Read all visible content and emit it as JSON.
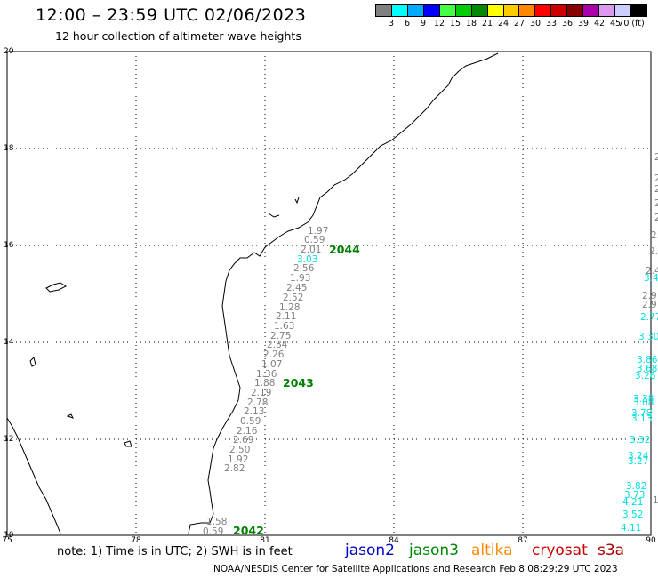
{
  "header": {
    "title": "12:00 – 23:59 UTC 02/06/2023",
    "subtitle": "12 hour collection of altimeter wave heights"
  },
  "colorbar": {
    "colors": [
      "#808080",
      "#00ffff",
      "#00aaff",
      "#0000ff",
      "#44ff44",
      "#00cc00",
      "#008800",
      "#ffff00",
      "#ffcc00",
      "#ff8800",
      "#ff0000",
      "#cc0000",
      "#880000",
      "#aa00aa",
      "#dd99ee",
      "#ccccff",
      "#000000"
    ],
    "labels": [
      "3",
      "6",
      "9",
      "12",
      "15",
      "18",
      "21",
      "24",
      "27",
      "30",
      "33",
      "36",
      "39",
      "42",
      "45",
      "70 (ft)"
    ]
  },
  "axes": {
    "lon_labels": [
      "75",
      "78",
      "81",
      "84",
      "87",
      "90"
    ],
    "lat_labels": [
      "20",
      "18",
      "16",
      "14",
      "12",
      "10"
    ]
  },
  "track_jason3": {
    "cycle_labels": [
      "2044",
      "2043",
      "2042"
    ],
    "values": [
      "1.97",
      "0.59",
      "2.01",
      "3.03",
      "2.56",
      "1.93",
      "2.45",
      "2.52",
      "1.28",
      "2.11",
      "1.63",
      "2.75",
      "2.84",
      "2.26",
      "1.07",
      "1.36",
      "1.88",
      "2.19",
      "2.78",
      "2.13",
      "0.59",
      "2.16",
      "2.69",
      "2.50",
      "1.92",
      "2.82",
      "1.58",
      "0.59"
    ]
  },
  "track_right": {
    "values": [
      "2.",
      "2",
      "2",
      "2.",
      "2.",
      "2.",
      "2.",
      "2.4",
      "3.4",
      "2.9",
      "2.9",
      "2.77",
      "3.30",
      "3.86",
      "3.68",
      "3.26",
      "3.38",
      "3.08",
      "3.78",
      "3.13",
      "3.32",
      "3.24",
      "3.27",
      "3.82",
      "3.73",
      "4.21",
      "3.52",
      "4.11",
      "1"
    ]
  },
  "footer": {
    "note": "note:  1) Time is in UTC;  2) SWH is in feet",
    "satellites": [
      {
        "name": "jason2",
        "color": "#0000cc"
      },
      {
        "name": "jason3",
        "color": "#008800"
      },
      {
        "name": "altika",
        "color": "#ff8800"
      },
      {
        "name": "cryosat",
        "color": "#cc0000"
      },
      {
        "name": "s3a",
        "color": "#aa0000"
      }
    ],
    "credit": "NOAA/NESDIS Center for Satellite Applications and Research    Feb  8 08:29:29 UTC 2023"
  }
}
